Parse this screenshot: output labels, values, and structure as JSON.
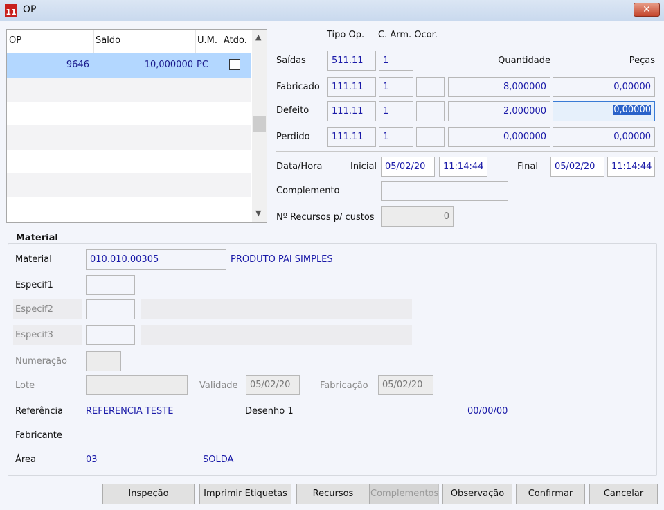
{
  "window": {
    "title": "OP",
    "icon": "app-logo-icon",
    "close_icon": "close-icon"
  },
  "grid": {
    "columns": [
      "OP",
      "Saldo",
      "U.M.",
      "Atdo."
    ],
    "rows": [
      {
        "op": "9646",
        "saldo": "10,000000",
        "um": "PC",
        "atendido": false
      }
    ],
    "selected_color": "#b3d7ff"
  },
  "movement": {
    "headers": {
      "tipo_op": "Tipo Op.",
      "c_arm_ocor": "C. Arm. Ocor.",
      "quantidade": "Quantidade",
      "pecas": "Peças"
    },
    "saidas": {
      "label": "Saídas",
      "tipo_op": "511.11",
      "c_arm": "1"
    },
    "fabricado": {
      "label": "Fabricado",
      "tipo_op": "111.11",
      "c_arm": "1",
      "ocor": "",
      "quantidade": "8,000000",
      "pecas": "0,00000"
    },
    "defeito": {
      "label": "Defeito",
      "tipo_op": "111.11",
      "c_arm": "1",
      "ocor": "",
      "quantidade": "2,000000",
      "pecas": "0,00000"
    },
    "perdido": {
      "label": "Perdido",
      "tipo_op": "111.11",
      "c_arm": "1",
      "ocor": "",
      "quantidade": "0,000000",
      "pecas": "0,00000"
    }
  },
  "datetime": {
    "label": "Data/Hora",
    "inicial_label": "Inicial",
    "inicial_date": "05/02/20",
    "inicial_time": "11:14:44",
    "final_label": "Final",
    "final_date": "05/02/20",
    "final_time": "11:14:44"
  },
  "complemento": {
    "label": "Complemento",
    "value": ""
  },
  "recursos": {
    "label": "Nº Recursos p/ custos",
    "value": "0"
  },
  "material": {
    "group_title": "Material",
    "material_label": "Material",
    "material_code": "010.010.00305",
    "material_desc": "PRODUTO PAI SIMPLES",
    "especif1_label": "Especif1",
    "especif2_label": "Especif2",
    "especif3_label": "Especif3",
    "numeracao_label": "Numeração",
    "lote_label": "Lote",
    "validade_label": "Validade",
    "validade": "05/02/20",
    "fabricacao_label": "Fabricação",
    "fabricacao": "05/02/20",
    "referencia_label": "Referência",
    "referencia": "REFERENCIA TESTE",
    "desenho": "Desenho 1",
    "desenho_date": "00/00/00",
    "fabricante_label": "Fabricante",
    "area_label": "Área",
    "area_code": "03",
    "area_desc": "SOLDA"
  },
  "buttons": {
    "inspecao": "Inspeção",
    "imprimir": "Imprimir Etiquetas",
    "recursos": "Recursos",
    "complementos": "Complementos",
    "observacao": "Observação",
    "confirmar": "Confirmar",
    "cancelar": "Cancelar"
  }
}
